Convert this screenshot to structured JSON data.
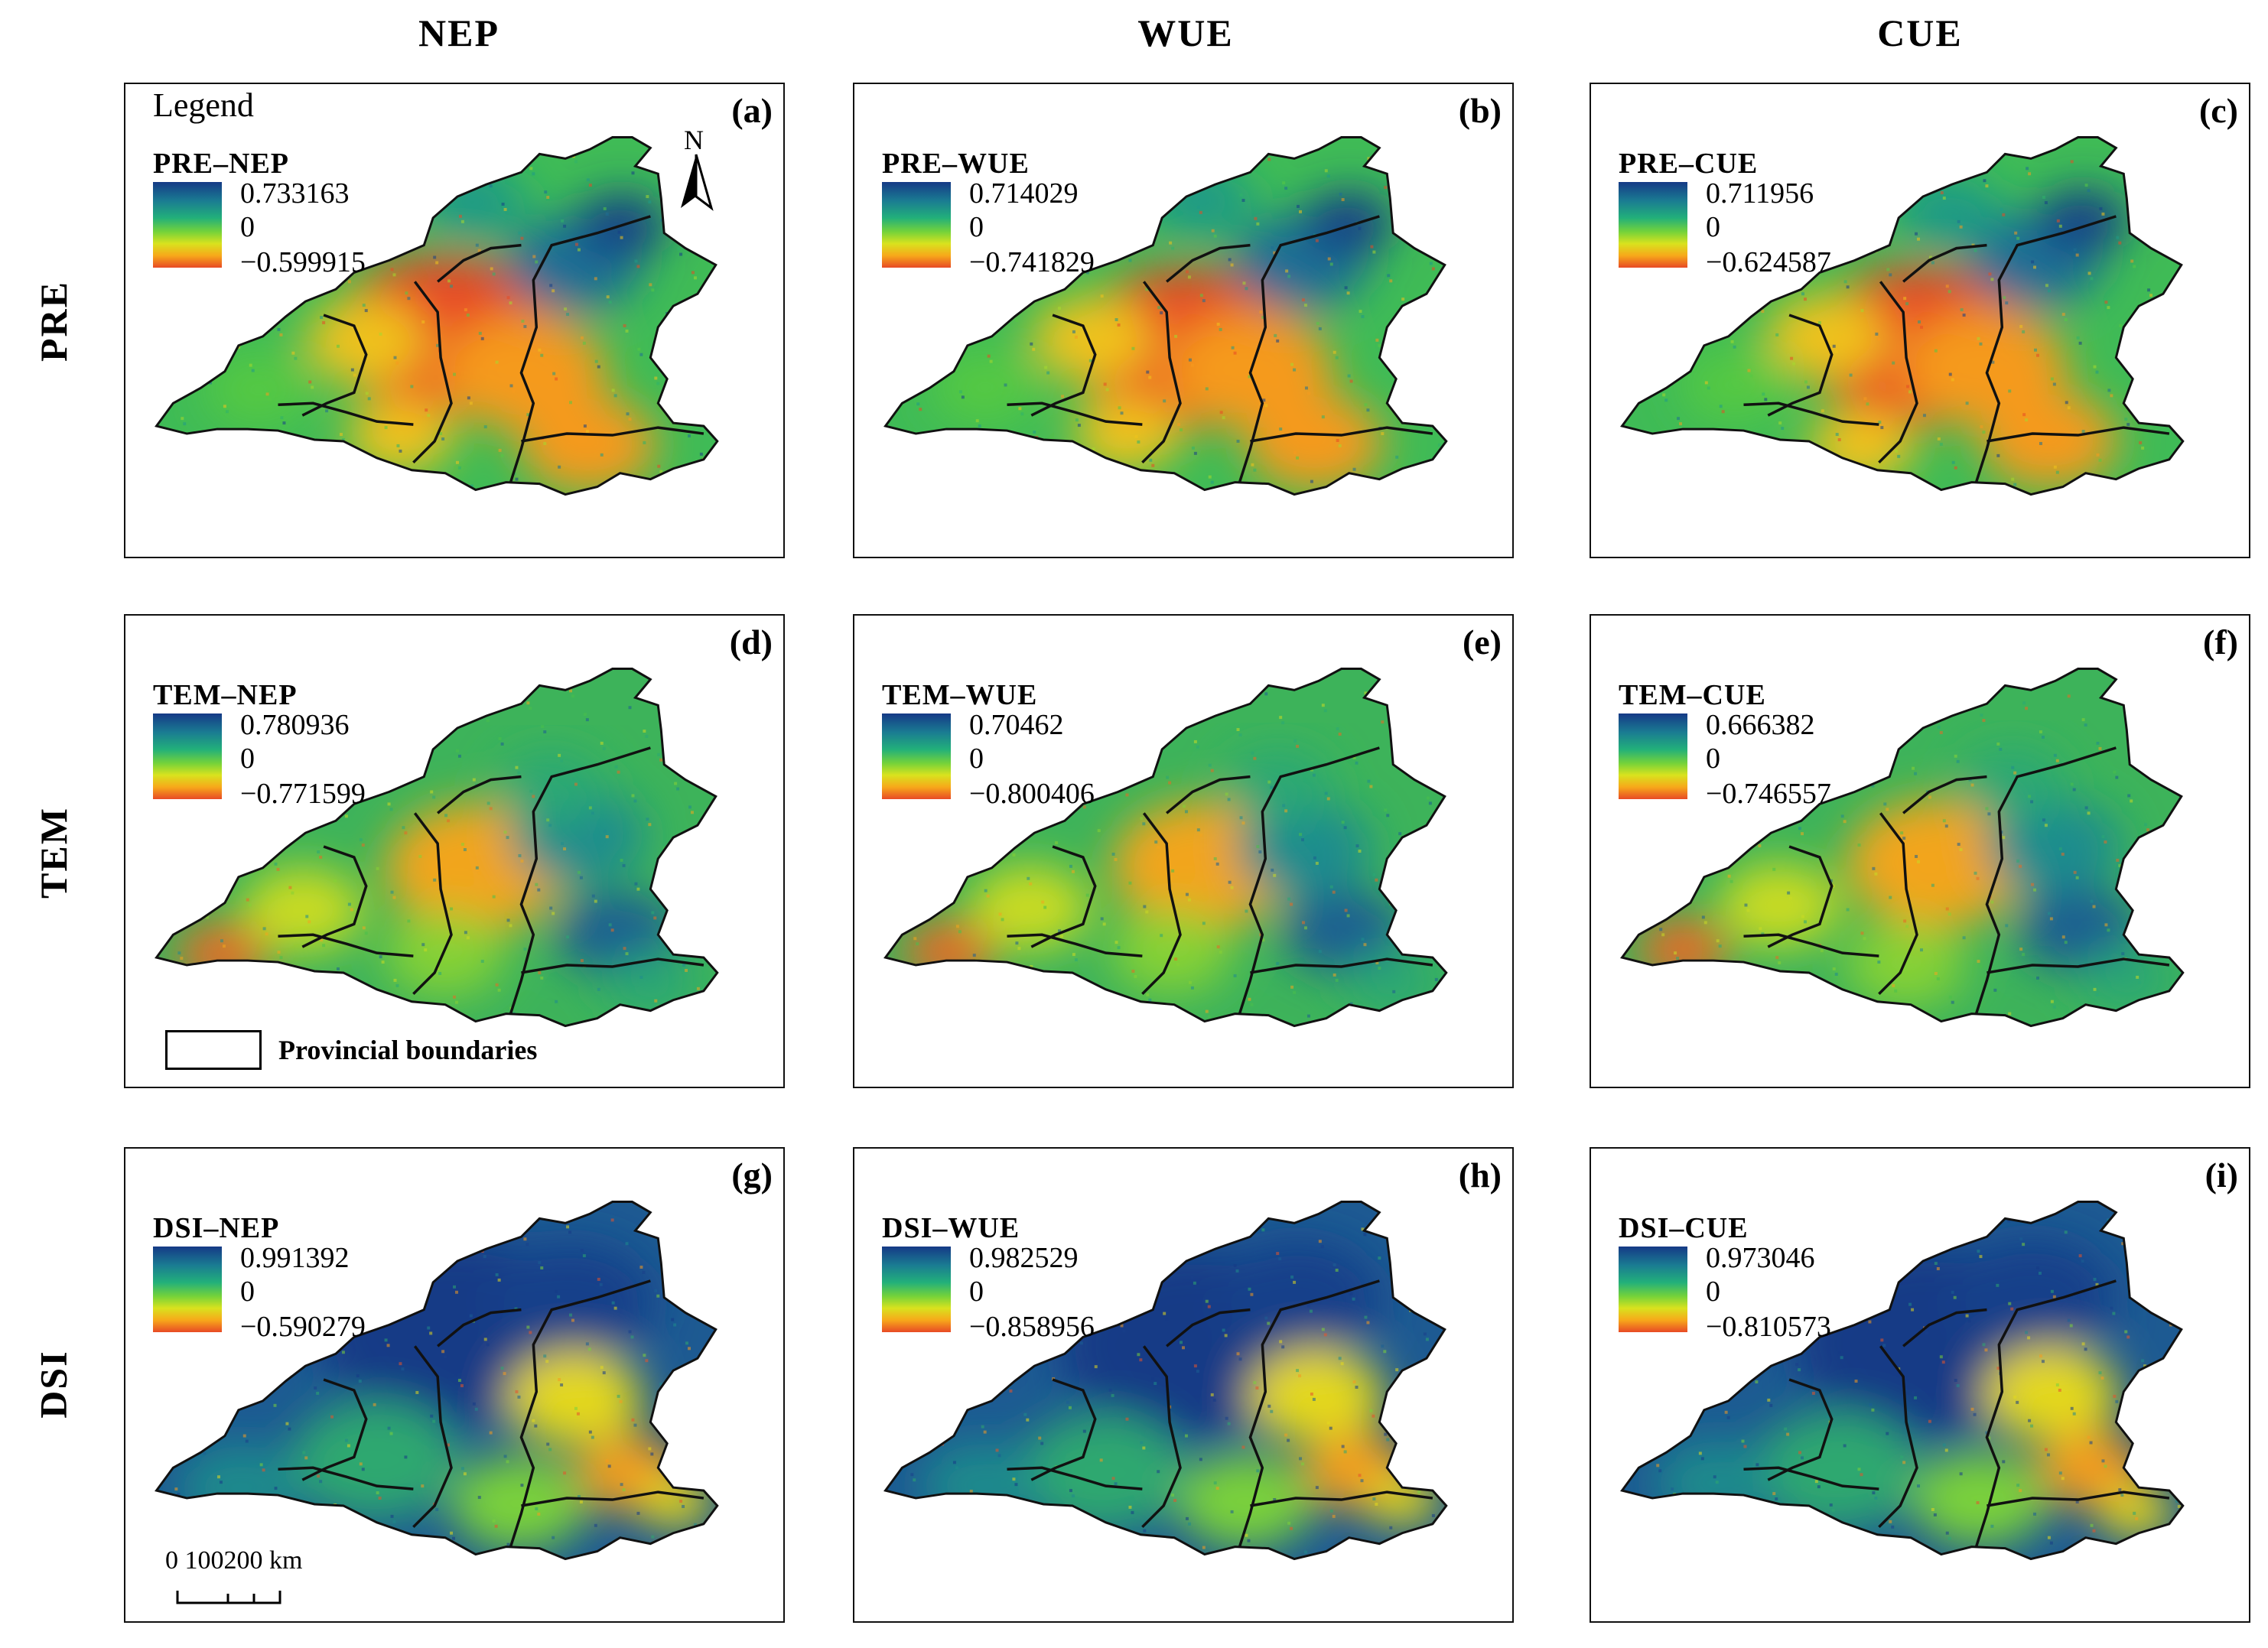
{
  "columns": [
    "NEP",
    "WUE",
    "CUE"
  ],
  "rows": [
    "PRE",
    "TEM",
    "DSI"
  ],
  "legend_word": "Legend",
  "north_letter": "N",
  "boundary_label": "Provincial boundaries",
  "scale_label": "0   100200 km",
  "colors": {
    "high": "#153a86",
    "mid_high": "#1a7c92",
    "mid": "#22b07a",
    "mid_low": "#74d23a",
    "low_mid": "#d9e21e",
    "low": "#f7a81a",
    "lowest": "#e84a25"
  },
  "panels": [
    {
      "label": "(a)",
      "title": "PRE–NEP",
      "max": "0.733163",
      "zero": "0",
      "min": "−0.599915"
    },
    {
      "label": "(b)",
      "title": "PRE–WUE",
      "max": "0.714029",
      "zero": "0",
      "min": "−0.741829"
    },
    {
      "label": "(c)",
      "title": "PRE–CUE",
      "max": "0.711956",
      "zero": "0",
      "min": "−0.624587"
    },
    {
      "label": "(d)",
      "title": "TEM–NEP",
      "max": "0.780936",
      "zero": "0",
      "min": "−0.771599"
    },
    {
      "label": "(e)",
      "title": "TEM–WUE",
      "max": "0.70462",
      "zero": "0",
      "min": "−0.800406"
    },
    {
      "label": "(f)",
      "title": "TEM–CUE",
      "max": "0.666382",
      "zero": "0",
      "min": "−0.746557"
    },
    {
      "label": "(g)",
      "title": "DSI–NEP",
      "max": "0.991392",
      "zero": "0",
      "min": "−0.590279"
    },
    {
      "label": "(h)",
      "title": "DSI–WUE",
      "max": "0.982529",
      "zero": "0",
      "min": "−0.858956"
    },
    {
      "label": "(i)",
      "title": "DSI–CUE",
      "max": "0.973046",
      "zero": "0",
      "min": "−0.810573"
    }
  ]
}
